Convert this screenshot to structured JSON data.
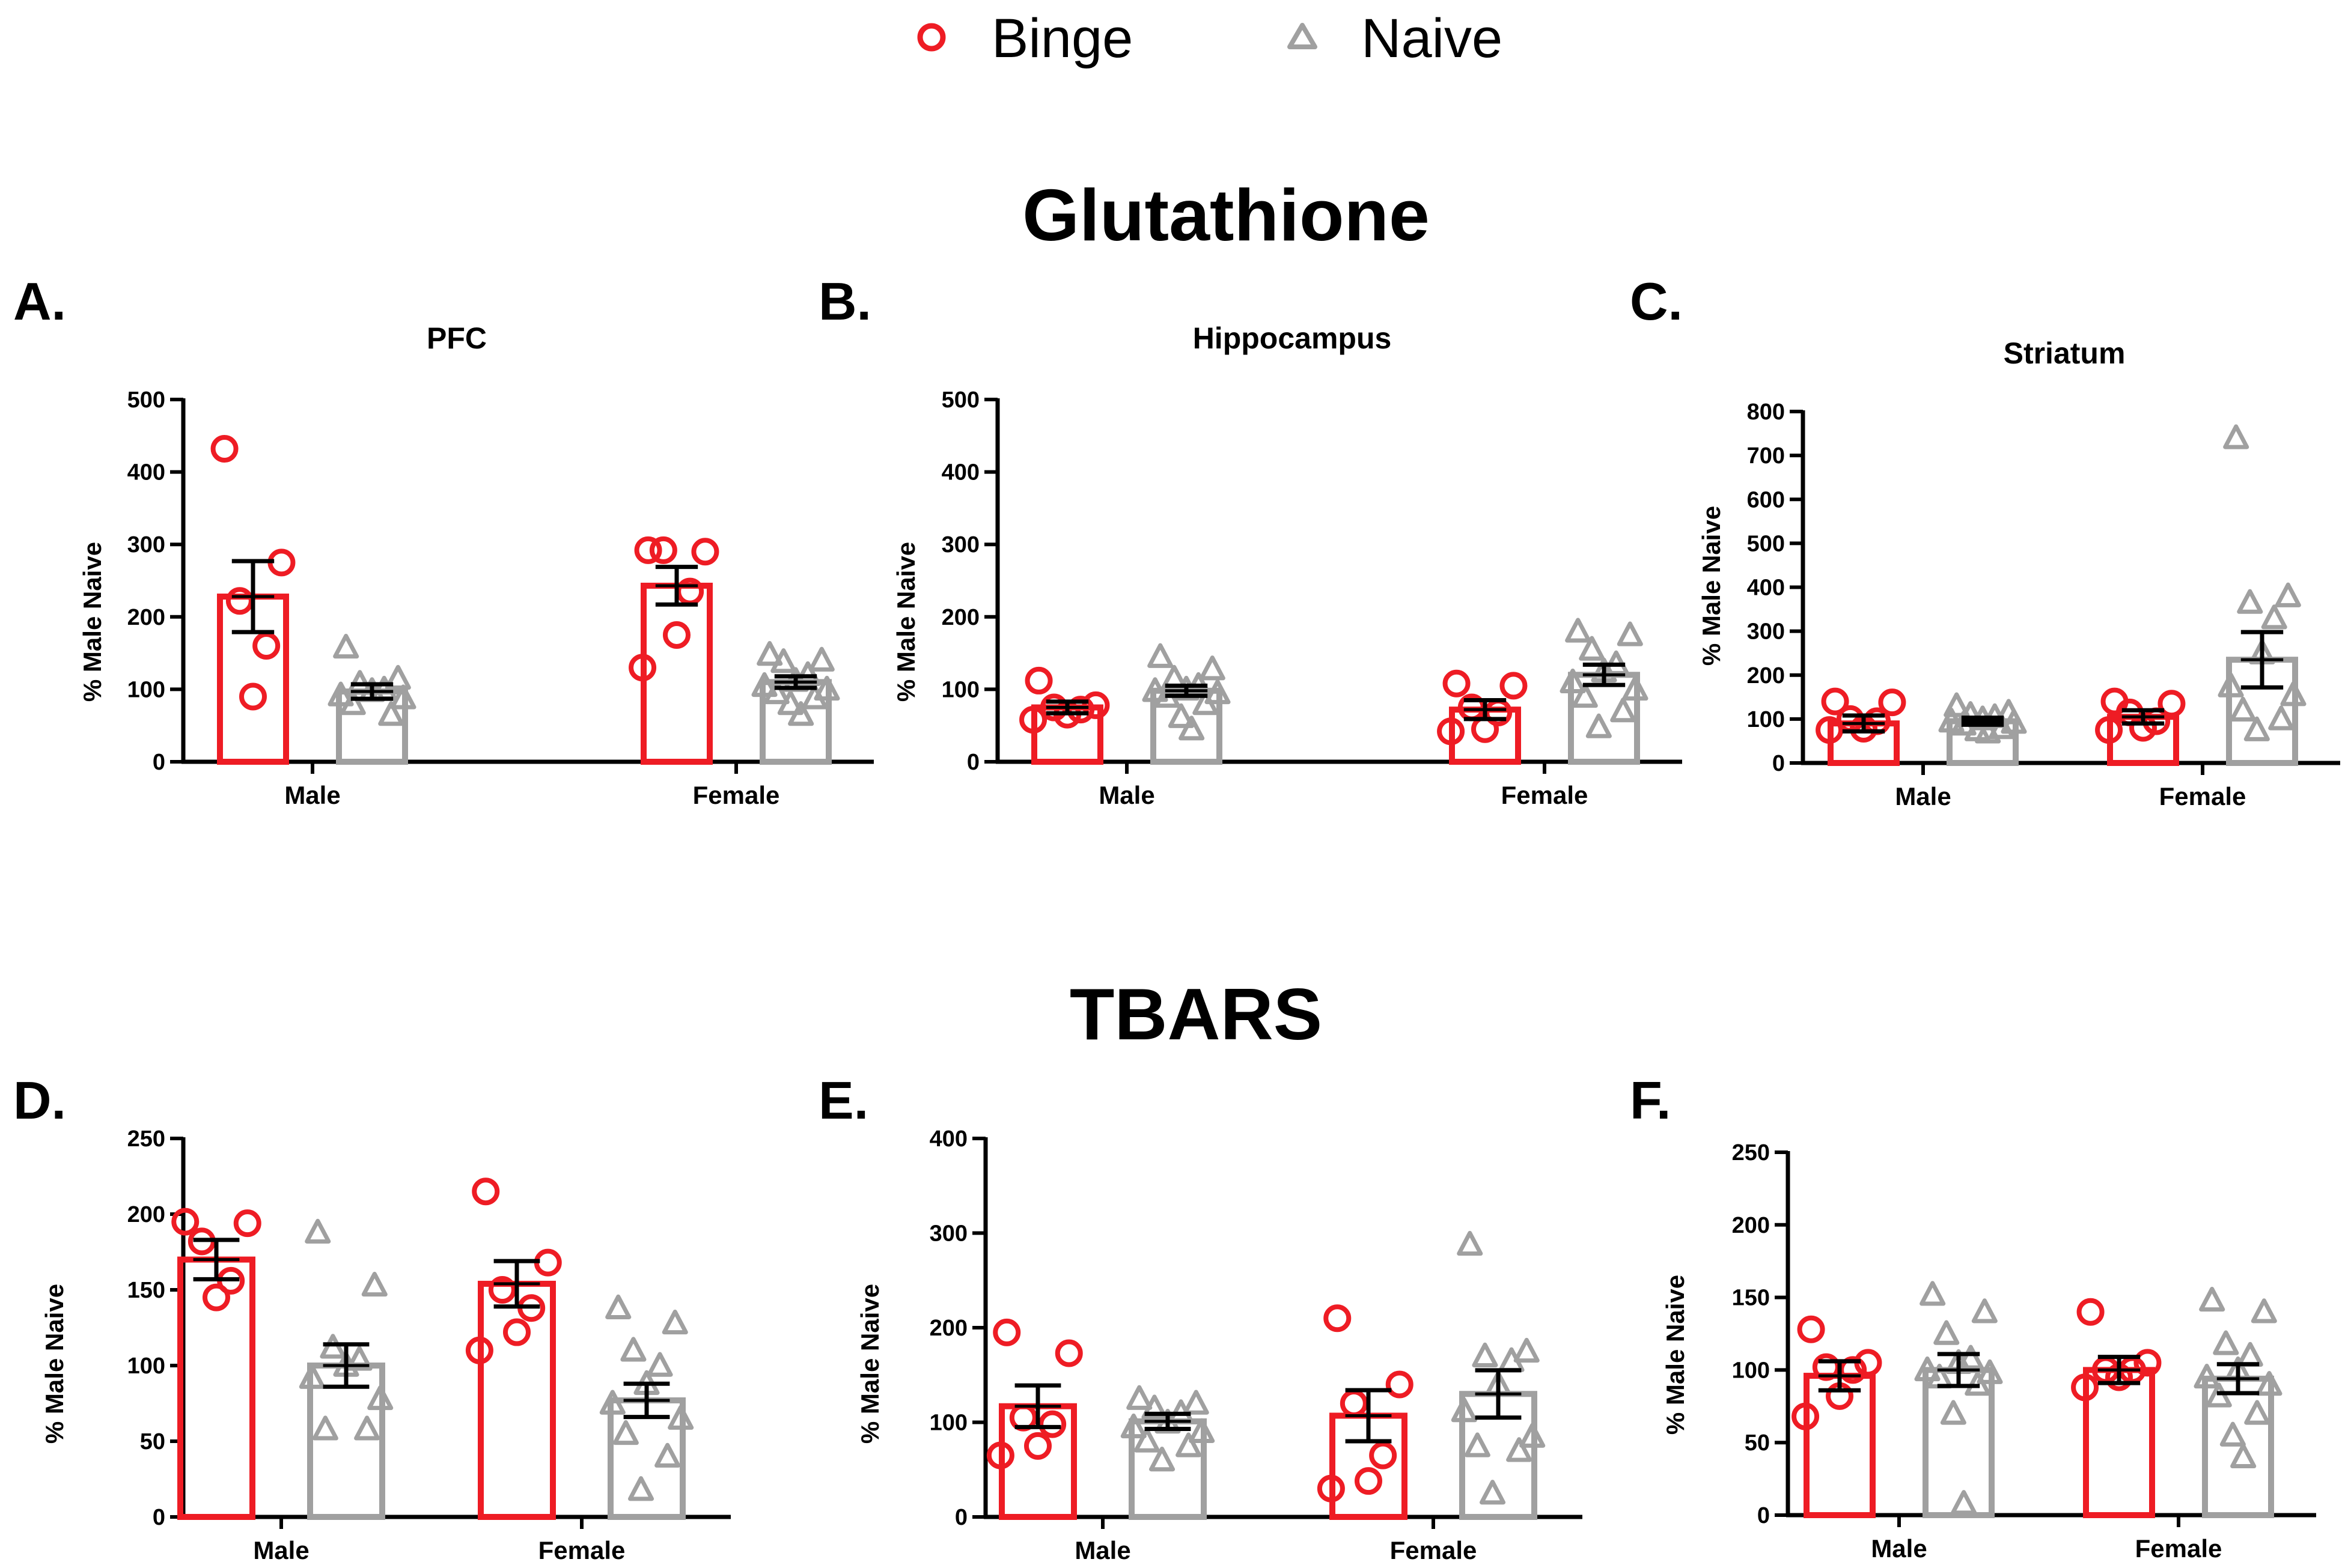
{
  "legend": [
    {
      "label": "Binge",
      "marker": "circle",
      "color": "#ee1c24"
    },
    {
      "label": "Naive",
      "marker": "triangle",
      "color": "#a0a0a0"
    }
  ],
  "sections": [
    {
      "title": "Glutathione"
    },
    {
      "title": "TBARS"
    }
  ],
  "colors": {
    "binge": "#ee1c24",
    "naive": "#a0a0a0",
    "axis": "#000000",
    "error": "#000000"
  },
  "chart_data": [
    {
      "type": "bar",
      "letter": "A.",
      "title": "PFC",
      "section": "Glutathione",
      "ylabel": "% Male Naive",
      "ylim": [
        0,
        500
      ],
      "yticks": [
        0,
        100,
        200,
        300,
        400,
        500
      ],
      "categories": [
        "Male",
        "Female"
      ],
      "series": [
        {
          "name": "Binge",
          "values": [
            228,
            243
          ],
          "sem": [
            49,
            26
          ],
          "points": [
            [
              432,
              275,
              222,
              160,
              90
            ],
            [
              292,
              290,
              292,
              235,
              175,
              130
            ]
          ]
        },
        {
          "name": "Naive",
          "values": [
            97,
            110
          ],
          "sem": [
            10,
            8
          ],
          "points": [
            [
              158,
              115,
              108,
              100,
              98,
              92,
              88,
              80,
              65
            ],
            [
              148,
              140,
              138,
              120,
              112,
              105,
              100,
              95,
              88,
              80,
              65
            ]
          ]
        }
      ]
    },
    {
      "type": "bar",
      "letter": "B.",
      "title": "Hippocampus",
      "section": "Glutathione",
      "ylabel": "% Male Naive",
      "ylim": [
        0,
        500
      ],
      "yticks": [
        0,
        100,
        200,
        300,
        400,
        500
      ],
      "categories": [
        "Male",
        "Female"
      ],
      "series": [
        {
          "name": "Binge",
          "values": [
            75,
            72
          ],
          "sem": [
            8,
            13
          ],
          "points": [
            [
              112,
              78,
              75,
              72,
              65,
              58
            ],
            [
              108,
              105,
              75,
              68,
              45,
              42
            ]
          ]
        },
        {
          "name": "Naive",
          "values": [
            98,
            120
          ],
          "sem": [
            7,
            14
          ],
          "points": [
            [
              145,
              128,
              115,
              105,
              100,
              98,
              95,
              90,
              80,
              62,
              45
            ],
            [
              180,
              175,
              155,
              135,
              125,
              110,
              100,
              90,
              70,
              48
            ]
          ]
        }
      ]
    },
    {
      "type": "bar",
      "letter": "C.",
      "title": "Striatum",
      "section": "Glutathione",
      "ylabel": "% Male Naive",
      "ylim": [
        0,
        800
      ],
      "yticks": [
        0,
        100,
        200,
        300,
        400,
        500,
        600,
        700,
        800
      ],
      "categories": [
        "Male",
        "Female"
      ],
      "series": [
        {
          "name": "Binge",
          "values": [
            90,
            105
          ],
          "sem": [
            18,
            15
          ],
          "points": [
            [
              140,
              138,
              100,
              95,
              78,
              75
            ],
            [
              140,
              135,
              115,
              95,
              80,
              75
            ]
          ]
        },
        {
          "name": "Naive",
          "values": [
            95,
            235
          ],
          "sem": [
            8,
            63
          ],
          "points": [
            [
              130,
              115,
              110,
              105,
              100,
              95,
              92,
              88,
              80,
              75,
              70
            ],
            [
              740,
              380,
              365,
              330,
              250,
              175,
              155,
              120,
              100,
              75
            ]
          ]
        }
      ]
    },
    {
      "type": "bar",
      "letter": "D.",
      "title": "",
      "section": "TBARS",
      "ylabel": "% Male Naive",
      "ylim": [
        0,
        250
      ],
      "yticks": [
        0,
        50,
        100,
        150,
        200,
        250
      ],
      "categories": [
        "Male",
        "Female"
      ],
      "series": [
        {
          "name": "Binge",
          "values": [
            170,
            154
          ],
          "sem": [
            13,
            15
          ],
          "points": [
            [
              195,
              194,
              182,
              156,
              145
            ],
            [
              215,
              168,
              150,
              138,
              122,
              110
            ]
          ]
        },
        {
          "name": "Naive",
          "values": [
            100,
            77
          ],
          "sem": [
            14,
            11
          ],
          "points": [
            [
              188,
              153,
              112,
              104,
              100,
              92,
              78,
              58,
              58
            ],
            [
              138,
              128,
              110,
              100,
              88,
              75,
              65,
              55,
              40,
              18
            ]
          ]
        }
      ]
    },
    {
      "type": "bar",
      "letter": "E.",
      "title": "",
      "section": "TBARS",
      "ylabel": "% Male Naive",
      "ylim": [
        0,
        400
      ],
      "yticks": [
        0,
        100,
        200,
        300,
        400
      ],
      "categories": [
        "Male",
        "Female"
      ],
      "series": [
        {
          "name": "Binge",
          "values": [
            117,
            107
          ],
          "sem": [
            22,
            27
          ],
          "points": [
            [
              195,
              173,
              105,
              98,
              75,
              65
            ],
            [
              210,
              140,
              120,
              65,
              38,
              30
            ]
          ]
        },
        {
          "name": "Naive",
          "values": [
            101,
            130
          ],
          "sem": [
            8,
            25
          ],
          "points": [
            [
              125,
              120,
              115,
              110,
              100,
              95,
              90,
              80,
              75,
              60
            ],
            [
              288,
              175,
              170,
              165,
              140,
              112,
              85,
              75,
              70,
              25
            ]
          ]
        }
      ]
    },
    {
      "type": "bar",
      "letter": "F.",
      "title": "",
      "section": "TBARS",
      "ylabel": "% Male Naive",
      "ylim": [
        0,
        250
      ],
      "yticks": [
        0,
        50,
        100,
        150,
        200,
        250
      ],
      "categories": [
        "Male",
        "Female"
      ],
      "series": [
        {
          "name": "Binge",
          "values": [
            96,
            100
          ],
          "sem": [
            10,
            9
          ],
          "points": [
            [
              128,
              105,
              102,
              100,
              82,
              68
            ],
            [
              140,
              105,
              100,
              100,
              95,
              88
            ]
          ]
        },
        {
          "name": "Naive",
          "values": [
            100,
            94
          ],
          "sem": [
            11,
            10
          ],
          "points": [
            [
              152,
              140,
              125,
              108,
              105,
              100,
              98,
              95,
              90,
              70,
              8
            ],
            [
              148,
              140,
              118,
              110,
              100,
              95,
              90,
              82,
              70,
              55,
              40
            ]
          ]
        }
      ]
    }
  ]
}
